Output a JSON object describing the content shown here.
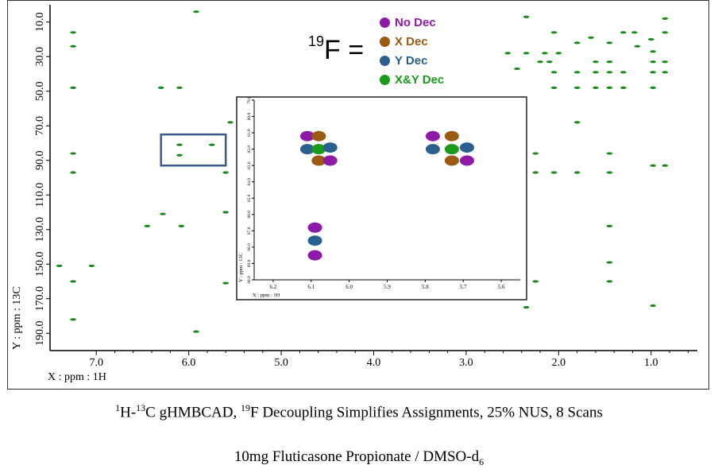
{
  "chart_data": {
    "type": "scatter",
    "title": "",
    "xlabel": "X : ppm : 1H",
    "ylabel": "Y : ppm : 13C",
    "xlim": [
      7.5,
      0.5
    ],
    "ylim": [
      0.0,
      200.0
    ],
    "x_ticks": [
      "7.0",
      "6.0",
      "5.0",
      "4.0",
      "3.0",
      "2.0",
      "1.0"
    ],
    "x_tick_values": [
      7.0,
      6.0,
      5.0,
      4.0,
      3.0,
      2.0,
      1.0
    ],
    "y_ticks": [
      "10.0",
      "30.0",
      "50.0",
      "70.0",
      "90.0",
      "110.0",
      "130.0",
      "150.0",
      "170.0",
      "190.0"
    ],
    "y_tick_values": [
      10,
      30,
      50,
      70,
      90,
      110,
      130,
      150,
      170,
      190
    ],
    "series": [
      {
        "color": "#1a8a1a",
        "points": [
          [
            7.25,
            16
          ],
          [
            7.25,
            24
          ],
          [
            7.25,
            48
          ],
          [
            7.25,
            86
          ],
          [
            7.25,
            97
          ],
          [
            7.25,
            160
          ],
          [
            7.25,
            182
          ],
          [
            7.4,
            151
          ],
          [
            7.05,
            151
          ],
          [
            6.3,
            48
          ],
          [
            6.1,
            48
          ],
          [
            6.1,
            81
          ],
          [
            6.1,
            87
          ],
          [
            5.75,
            81
          ],
          [
            6.28,
            121
          ],
          [
            6.08,
            128
          ],
          [
            5.92,
            4
          ],
          [
            5.92,
            189
          ],
          [
            5.6,
            161
          ],
          [
            5.6,
            97
          ],
          [
            6.45,
            128
          ],
          [
            5.55,
            68
          ],
          [
            5.6,
            120
          ],
          [
            2.35,
            7
          ],
          [
            2.25,
            86
          ],
          [
            2.25,
            97
          ],
          [
            2.25,
            160
          ],
          [
            2.35,
            175
          ],
          [
            2.05,
            39
          ],
          [
            2.05,
            48
          ],
          [
            2.05,
            97
          ],
          [
            2.05,
            16
          ],
          [
            1.8,
            22
          ],
          [
            1.8,
            39
          ],
          [
            1.8,
            48
          ],
          [
            1.8,
            68
          ],
          [
            1.8,
            97
          ],
          [
            1.45,
            22
          ],
          [
            1.45,
            33
          ],
          [
            1.45,
            39
          ],
          [
            1.45,
            48
          ],
          [
            1.45,
            86
          ],
          [
            1.45,
            97
          ],
          [
            1.45,
            128
          ],
          [
            1.45,
            149
          ],
          [
            1.45,
            160
          ],
          [
            1.6,
            33
          ],
          [
            1.6,
            39
          ],
          [
            1.6,
            48
          ],
          [
            1.3,
            16
          ],
          [
            1.3,
            39
          ],
          [
            1.3,
            48
          ],
          [
            1.18,
            16
          ],
          [
            0.98,
            27
          ],
          [
            0.98,
            33
          ],
          [
            0.98,
            39
          ],
          [
            0.98,
            48
          ],
          [
            0.98,
            93
          ],
          [
            0.98,
            174
          ],
          [
            0.85,
            8
          ],
          [
            0.85,
            16
          ],
          [
            0.85,
            33
          ],
          [
            0.85,
            39
          ],
          [
            0.85,
            93
          ],
          [
            2.45,
            37
          ],
          [
            2.55,
            28
          ],
          [
            2.35,
            28
          ],
          [
            2.2,
            33
          ],
          [
            2.15,
            28
          ],
          [
            2.1,
            33
          ],
          [
            1.65,
            19
          ],
          [
            1.15,
            24
          ],
          [
            1.0,
            20
          ],
          [
            2.0,
            28
          ]
        ]
      }
    ],
    "legend": [
      {
        "label": "No Dec",
        "color": "#8e1aa8"
      },
      {
        "label": "X Dec",
        "color": "#9a5a12"
      },
      {
        "label": "Y Dec",
        "color": "#2a5f8e"
      },
      {
        "label": "X&Y Dec",
        "color": "#1a9a1a"
      }
    ],
    "legend_prefix": {
      "sup": "19",
      "text": "F ="
    },
    "inset": {
      "xlim": [
        6.25,
        5.55
      ],
      "ylim": [
        79.0,
        90.0
      ],
      "x_ticks": [
        "6.2",
        "6.1",
        "6.0",
        "5.9",
        "5.8",
        "5.7",
        "5.6"
      ],
      "x_tick_values": [
        6.2,
        6.1,
        6.0,
        5.9,
        5.8,
        5.7,
        5.6
      ],
      "y_ticks": [
        "79.0",
        "80.0",
        "81.0",
        "82.0",
        "83.0",
        "84.0",
        "85.0",
        "86.0",
        "87.0",
        "88.0",
        "89.0",
        "90.0"
      ],
      "y_tick_values": [
        79,
        80,
        81,
        82,
        83,
        84,
        85,
        86,
        87,
        88,
        89,
        90
      ],
      "xlabel": "X : ppm : 1H",
      "ylabel": "Y : ppm : 13C",
      "points": [
        {
          "x": 6.11,
          "y": 81.2,
          "color": "#8e1aa8"
        },
        {
          "x": 6.08,
          "y": 81.2,
          "color": "#9a5a12"
        },
        {
          "x": 6.11,
          "y": 82.0,
          "color": "#2a5f8e"
        },
        {
          "x": 6.08,
          "y": 82.0,
          "color": "#1a9a1a"
        },
        {
          "x": 6.05,
          "y": 81.9,
          "color": "#2a5f8e"
        },
        {
          "x": 6.08,
          "y": 82.7,
          "color": "#9a5a12"
        },
        {
          "x": 6.05,
          "y": 82.7,
          "color": "#8e1aa8"
        },
        {
          "x": 5.78,
          "y": 81.2,
          "color": "#8e1aa8"
        },
        {
          "x": 5.73,
          "y": 81.2,
          "color": "#9a5a12"
        },
        {
          "x": 5.78,
          "y": 82.0,
          "color": "#2a5f8e"
        },
        {
          "x": 5.73,
          "y": 82.0,
          "color": "#1a9a1a"
        },
        {
          "x": 5.69,
          "y": 81.9,
          "color": "#2a5f8e"
        },
        {
          "x": 5.73,
          "y": 82.7,
          "color": "#9a5a12"
        },
        {
          "x": 5.69,
          "y": 82.7,
          "color": "#8e1aa8"
        },
        {
          "x": 6.09,
          "y": 86.8,
          "color": "#8e1aa8"
        },
        {
          "x": 6.09,
          "y": 87.6,
          "color": "#2a5f8e"
        },
        {
          "x": 6.09,
          "y": 88.5,
          "color": "#8e1aa8"
        }
      ]
    },
    "highlight_box": {
      "x_range": [
        6.3,
        5.6
      ],
      "y_range": [
        75.0,
        93.0
      ],
      "color": "#3a5a8a"
    }
  },
  "caption": {
    "line1_parts": [
      {
        "sup": "1"
      },
      {
        "text": "H-"
      },
      {
        "sup": "13"
      },
      {
        "text": "C gHMBCAD, "
      },
      {
        "sup": "19"
      },
      {
        "text": "F Decoupling Simplifies Assignments, 25% NUS, 8 Scans"
      }
    ],
    "line2_parts": [
      {
        "text": "10mg Fluticasone Propionate / DMSO-d"
      },
      {
        "sub": "6"
      }
    ]
  }
}
